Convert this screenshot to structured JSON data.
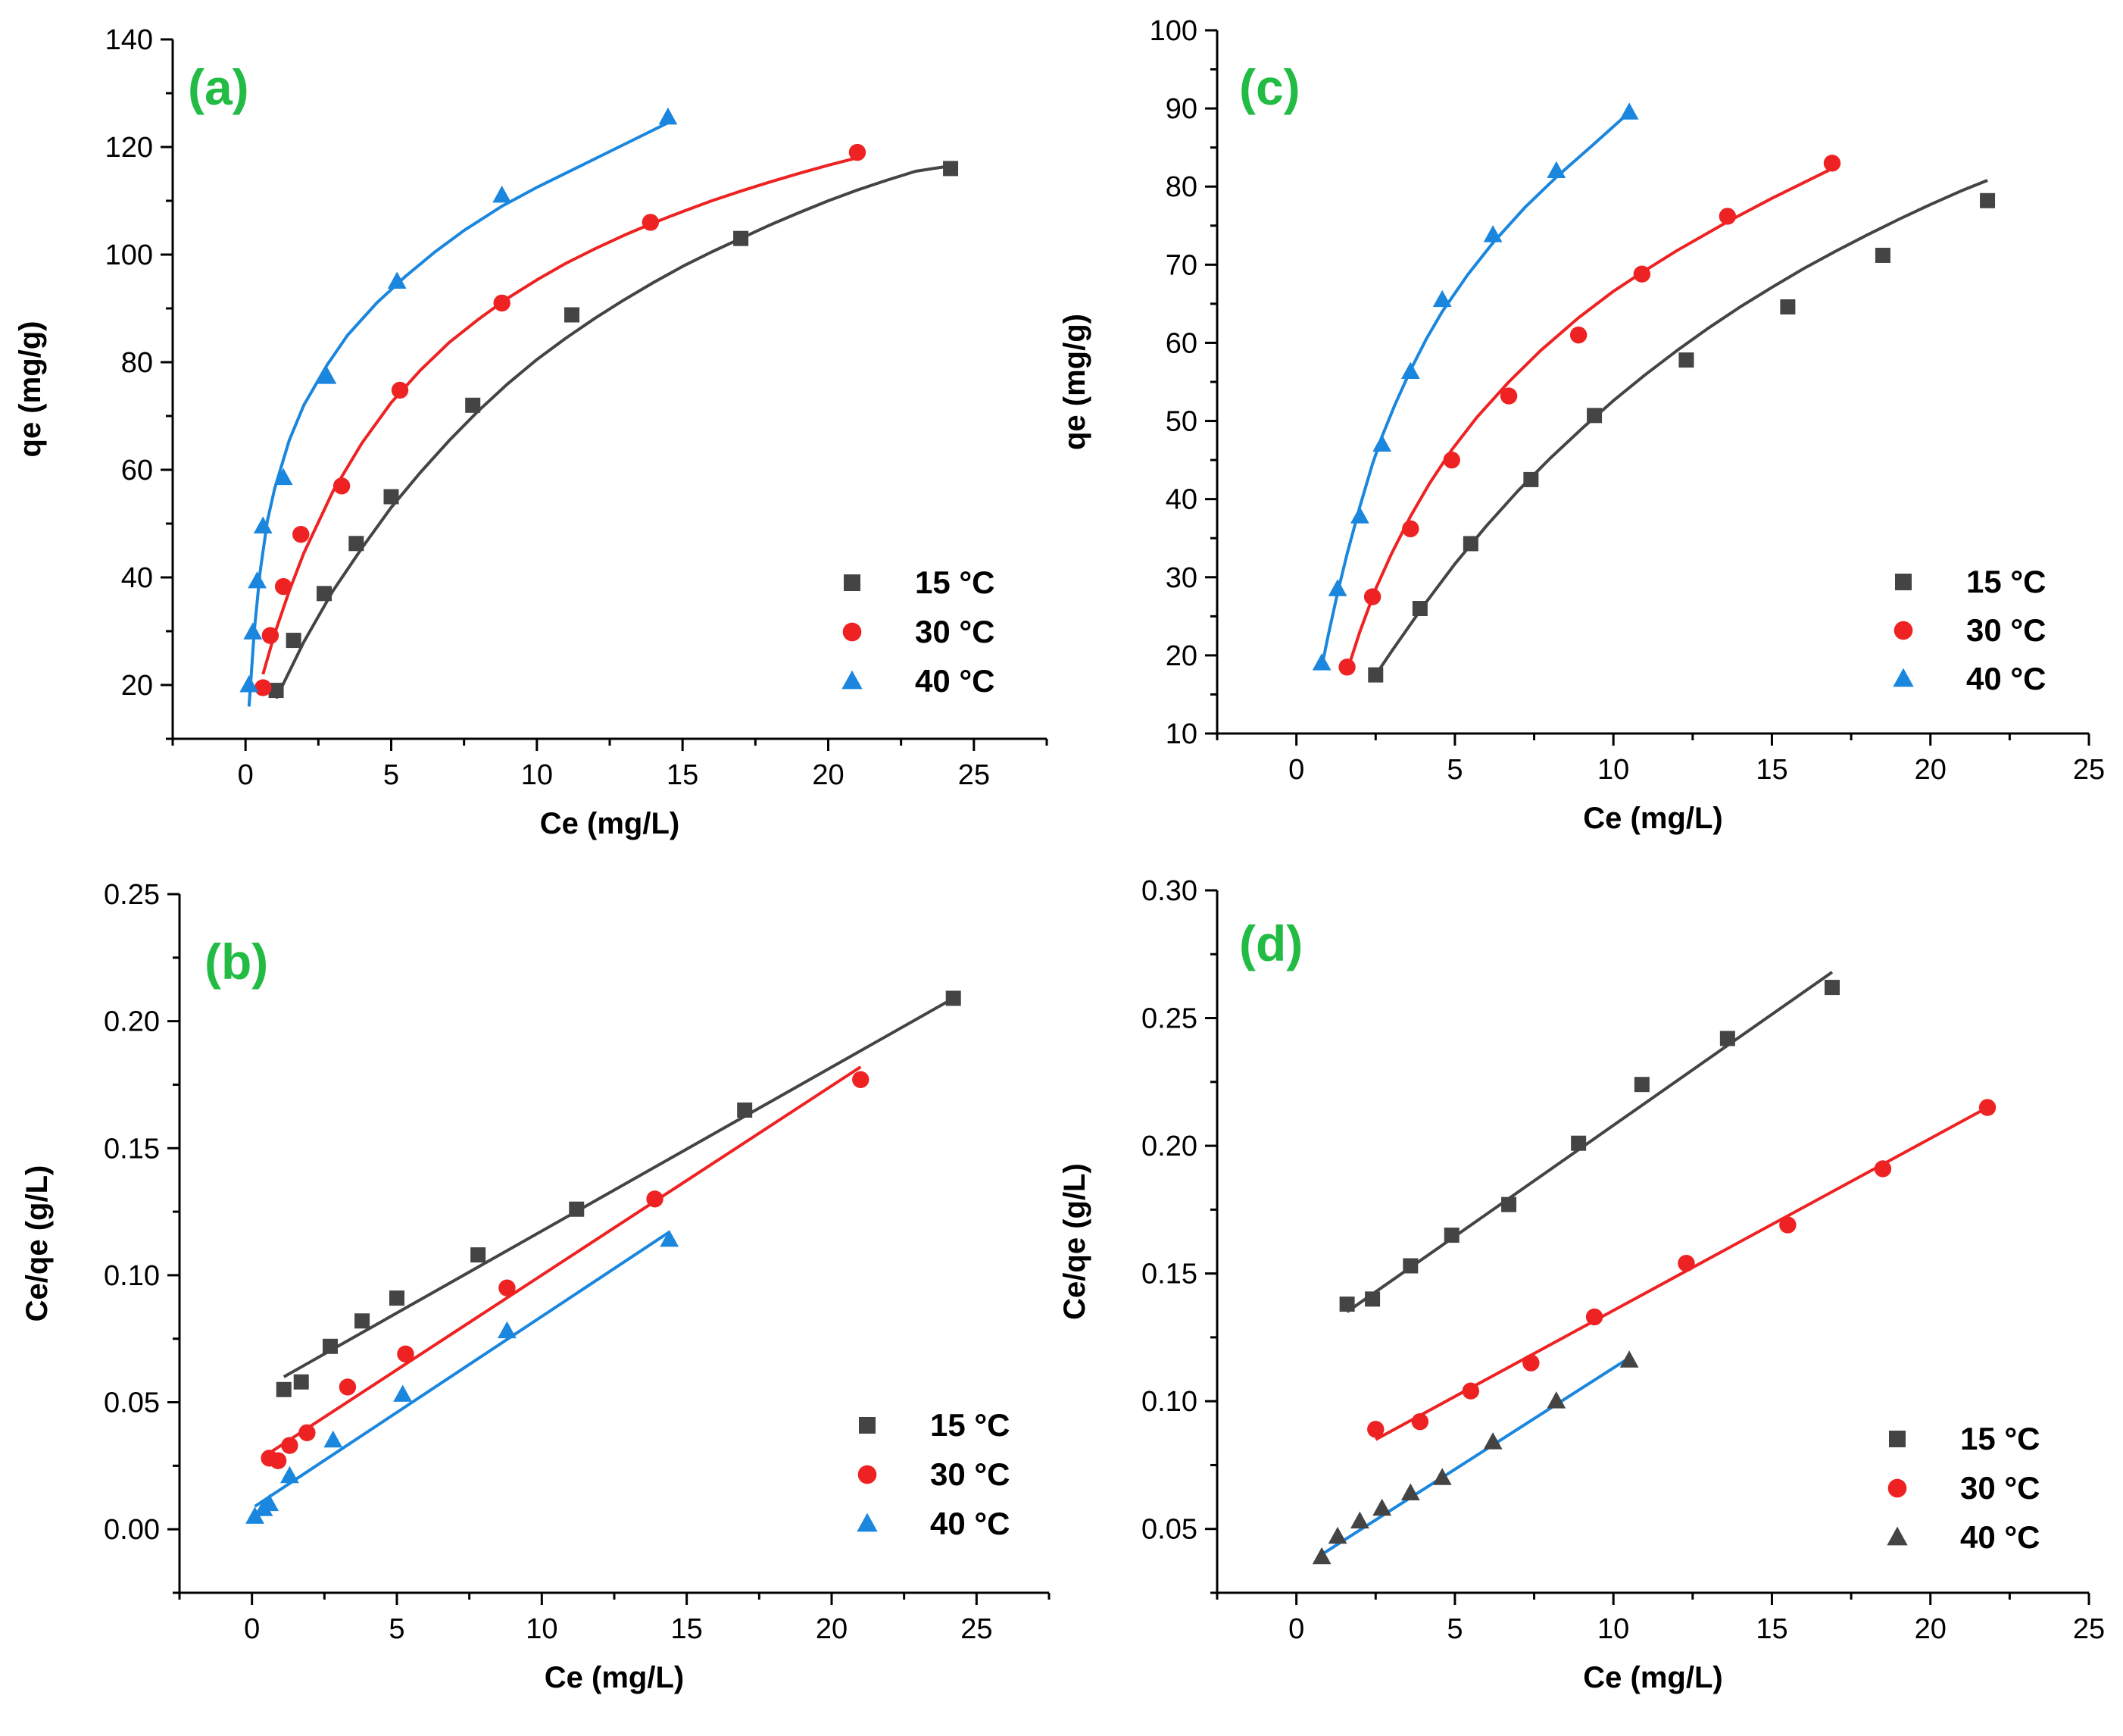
{
  "colors": {
    "15": "#444444",
    "30": "#ee2222",
    "40": "#1a86dd",
    "tag": "#22bb44"
  },
  "chart_data": [
    {
      "id": "a",
      "type": "scatter",
      "title": "(a)",
      "xlabel": "Ce (mg/L)",
      "ylabel": "qe (mg/g)",
      "xlim": [
        -2.5,
        27.5
      ],
      "ylim": [
        10,
        140
      ],
      "xticks": [
        0,
        5,
        10,
        15,
        20,
        25
      ],
      "yticks": [
        20,
        40,
        60,
        80,
        100,
        120,
        140
      ],
      "legend_position": "bottom-right",
      "fit": "curve",
      "series": [
        {
          "name": "15 °C",
          "marker": "square",
          "color": "#444444",
          "x": [
            1.05,
            1.65,
            2.7,
            3.8,
            5.0,
            7.8,
            11.2,
            17.0,
            24.2
          ],
          "y": [
            19.0,
            28.3,
            37.0,
            46.3,
            55.0,
            72.0,
            88.8,
            103.0,
            116.0
          ],
          "fit_x": [
            1.05,
            2,
            3,
            4,
            5,
            6,
            7,
            8,
            9,
            10,
            11,
            12,
            13,
            14,
            15,
            16,
            17,
            18,
            19,
            20,
            21,
            22,
            23,
            24.2
          ],
          "fit_y": [
            17.5,
            28.0,
            37.5,
            45.5,
            53.0,
            59.5,
            65.5,
            71.0,
            76.0,
            80.5,
            84.5,
            88.2,
            91.6,
            94.8,
            97.8,
            100.5,
            103.0,
            105.5,
            107.8,
            110.0,
            112.0,
            113.8,
            115.5,
            116.5
          ]
        },
        {
          "name": "30 °C",
          "marker": "circle",
          "color": "#ee2222",
          "x": [
            0.6,
            0.85,
            1.3,
            1.9,
            3.3,
            5.3,
            8.8,
            13.9,
            21.0
          ],
          "y": [
            19.5,
            29.2,
            38.3,
            48.0,
            57.0,
            74.8,
            91.0,
            106.0,
            119.0
          ],
          "fit_x": [
            0.6,
            1.0,
            1.5,
            2.0,
            3.0,
            4.0,
            5.0,
            6.0,
            7.0,
            8.0,
            9.0,
            10.0,
            11.0,
            12.0,
            13.0,
            14.0,
            15.0,
            16.0,
            17.0,
            18.0,
            19.0,
            20.0,
            21.0
          ],
          "fit_y": [
            22.0,
            29.5,
            37.5,
            44.5,
            56.0,
            65.0,
            72.5,
            78.5,
            83.7,
            88.0,
            91.9,
            95.3,
            98.4,
            101.1,
            103.6,
            105.9,
            108.0,
            110.0,
            111.8,
            113.5,
            115.1,
            116.6,
            118.0
          ]
        },
        {
          "name": "40 °C",
          "marker": "triangle",
          "color": "#1a86dd",
          "x": [
            0.12,
            0.25,
            0.4,
            0.6,
            1.3,
            2.8,
            5.2,
            8.8,
            14.5
          ],
          "y": [
            20.0,
            29.8,
            39.3,
            49.5,
            58.5,
            77.3,
            95.0,
            111.0,
            125.5
          ],
          "fit_x": [
            0.12,
            0.3,
            0.5,
            0.75,
            1.0,
            1.5,
            2.0,
            2.8,
            3.5,
            4.5,
            5.5,
            6.5,
            7.5,
            8.8,
            10.0,
            11.5,
            13.0,
            14.5
          ],
          "fit_y": [
            16.0,
            30.0,
            41.0,
            50.5,
            56.5,
            65.5,
            72.0,
            79.5,
            85.0,
            91.0,
            96.0,
            100.5,
            104.5,
            109.0,
            112.5,
            116.5,
            120.5,
            124.5
          ]
        }
      ]
    },
    {
      "id": "b",
      "type": "scatter",
      "title": "(b)",
      "xlabel": "Ce (mg/L)",
      "ylabel": "Ce/qe (g/L)",
      "xlim": [
        -2.5,
        27.5
      ],
      "ylim": [
        -0.025,
        0.25
      ],
      "xticks": [
        0,
        5,
        10,
        15,
        20,
        25
      ],
      "yticks": [
        0.0,
        0.05,
        0.1,
        0.15,
        0.2,
        0.25
      ],
      "ytick_labels": [
        "0.00",
        "0.05",
        "0.10",
        "0.15",
        "0.20",
        "0.25"
      ],
      "legend_position": "bottom-right",
      "fit": "linear",
      "series": [
        {
          "name": "15 °C",
          "marker": "square",
          "color": "#444444",
          "x": [
            1.1,
            1.7,
            2.7,
            3.8,
            5.0,
            7.8,
            11.2,
            17.0,
            24.2
          ],
          "y": [
            0.055,
            0.058,
            0.072,
            0.082,
            0.091,
            0.108,
            0.126,
            0.165,
            0.209
          ],
          "fit_x": [
            1.1,
            24.2
          ],
          "fit_y": [
            0.06,
            0.209
          ]
        },
        {
          "name": "30 °C",
          "marker": "circle",
          "color": "#ee2222",
          "x": [
            0.6,
            0.9,
            1.3,
            1.9,
            3.3,
            5.3,
            8.8,
            13.9,
            21.0
          ],
          "y": [
            0.028,
            0.027,
            0.033,
            0.038,
            0.056,
            0.069,
            0.095,
            0.13,
            0.177
          ],
          "fit_x": [
            0.6,
            21.0
          ],
          "fit_y": [
            0.03,
            0.182
          ]
        },
        {
          "name": "40 °C",
          "marker": "triangle",
          "color": "#1a86dd",
          "x": [
            0.1,
            0.4,
            0.6,
            1.3,
            2.8,
            5.2,
            8.8,
            14.4
          ],
          "y": [
            0.005,
            0.008,
            0.01,
            0.021,
            0.035,
            0.053,
            0.078,
            0.114
          ],
          "fit_x": [
            0.1,
            14.4
          ],
          "fit_y": [
            0.009,
            0.117
          ]
        }
      ]
    },
    {
      "id": "c",
      "type": "scatter",
      "title": "(c)",
      "xlabel": "Ce (mg/L)",
      "ylabel": "qe (mg/g)",
      "xlim": [
        -2.5,
        25
      ],
      "ylim": [
        10,
        100
      ],
      "xticks": [
        0,
        5,
        10,
        15,
        20,
        25
      ],
      "yticks": [
        10,
        20,
        30,
        40,
        50,
        60,
        70,
        80,
        90,
        100
      ],
      "legend_position": "bottom-right",
      "fit": "curve",
      "series": [
        {
          "name": "15 °C",
          "marker": "square",
          "color": "#444444",
          "x": [
            2.5,
            3.9,
            5.5,
            7.4,
            9.4,
            12.3,
            15.5,
            18.5,
            21.8
          ],
          "y": [
            17.5,
            26.0,
            34.3,
            42.5,
            50.7,
            57.8,
            64.6,
            71.2,
            78.2
          ],
          "fit_x": [
            2.5,
            3.0,
            4.0,
            5.0,
            6.0,
            7.0,
            8.0,
            9.0,
            10.0,
            11.0,
            12.0,
            13.0,
            14.0,
            15.0,
            16.0,
            17.0,
            18.0,
            19.0,
            20.0,
            21.0,
            21.8
          ],
          "fit_y": [
            17.5,
            20.5,
            26.3,
            31.7,
            36.6,
            41.1,
            45.2,
            49.0,
            52.6,
            55.9,
            59.0,
            61.9,
            64.6,
            67.1,
            69.5,
            71.7,
            73.8,
            75.8,
            77.7,
            79.5,
            80.8
          ]
        },
        {
          "name": "30 °C",
          "marker": "circle",
          "color": "#ee2222",
          "x": [
            1.6,
            2.4,
            3.6,
            4.9,
            6.7,
            8.9,
            10.9,
            13.6,
            16.9
          ],
          "y": [
            18.5,
            27.5,
            36.2,
            45.0,
            53.2,
            61.0,
            68.8,
            76.2,
            83.0
          ],
          "fit_x": [
            1.6,
            2.0,
            2.5,
            3.0,
            3.6,
            4.2,
            4.9,
            5.7,
            6.7,
            7.7,
            8.9,
            10.0,
            10.9,
            12.0,
            13.6,
            15.0,
            16.9
          ],
          "fit_y": [
            18.0,
            23.0,
            28.5,
            33.0,
            37.8,
            42.0,
            46.3,
            50.5,
            55.0,
            59.0,
            63.2,
            66.6,
            69.0,
            71.8,
            75.5,
            78.5,
            82.3
          ]
        },
        {
          "name": "40 °C",
          "marker": "triangle",
          "color": "#1a86dd",
          "x": [
            0.8,
            1.3,
            2.0,
            2.7,
            3.6,
            4.6,
            6.2,
            8.2,
            10.5
          ],
          "y": [
            19.0,
            28.5,
            37.8,
            47.0,
            56.3,
            65.5,
            73.8,
            82.0,
            89.5
          ],
          "fit_x": [
            0.8,
            1.0,
            1.3,
            1.6,
            2.0,
            2.4,
            2.7,
            3.1,
            3.6,
            4.1,
            4.6,
            5.4,
            6.2,
            7.2,
            8.2,
            9.4,
            10.5
          ],
          "fit_y": [
            18.5,
            22.5,
            28.0,
            33.0,
            39.0,
            44.5,
            48.0,
            52.0,
            56.5,
            60.5,
            64.0,
            68.7,
            72.8,
            77.3,
            81.2,
            85.5,
            89.5
          ]
        }
      ]
    },
    {
      "id": "d",
      "type": "scatter",
      "title": "(d)",
      "xlabel": "Ce (mg/L)",
      "ylabel": "Ce/qe (g/L)",
      "xlim": [
        -2.5,
        25
      ],
      "ylim": [
        0.025,
        0.3
      ],
      "xticks": [
        0,
        5,
        10,
        15,
        20,
        25
      ],
      "yticks": [
        0.05,
        0.1,
        0.15,
        0.2,
        0.25,
        0.3
      ],
      "ytick_labels": [
        "0.05",
        "0.10",
        "0.15",
        "0.20",
        "0.25",
        "0.30"
      ],
      "legend_position": "bottom-right",
      "fit": "linear",
      "series": [
        {
          "name": "15 °C",
          "marker": "square",
          "color": "#444444",
          "x": [
            1.6,
            2.4,
            3.6,
            4.9,
            6.7,
            8.9,
            10.9,
            13.6,
            16.9
          ],
          "y": [
            0.138,
            0.14,
            0.153,
            0.165,
            0.177,
            0.201,
            0.224,
            0.242,
            0.262
          ],
          "fit_x": [
            1.6,
            16.9
          ],
          "fit_y": [
            0.135,
            0.268
          ]
        },
        {
          "name": "30 °C",
          "marker": "circle",
          "color": "#ee2222",
          "x": [
            2.5,
            3.9,
            5.5,
            7.4,
            9.4,
            12.3,
            15.5,
            18.5,
            21.8
          ],
          "y": [
            0.089,
            0.092,
            0.104,
            0.115,
            0.133,
            0.154,
            0.169,
            0.191,
            0.215
          ],
          "fit_x": [
            2.5,
            21.8
          ],
          "fit_y": [
            0.085,
            0.215
          ]
        },
        {
          "name": "40 °C",
          "marker": "triangle",
          "color": "#444444",
          "x": [
            0.8,
            1.3,
            2.0,
            2.7,
            3.6,
            4.6,
            6.2,
            8.2,
            10.5
          ],
          "y": [
            0.039,
            0.047,
            0.053,
            0.058,
            0.064,
            0.07,
            0.084,
            0.1,
            0.116
          ],
          "fit_x": [
            0.8,
            10.5
          ],
          "fit_y": [
            0.04,
            0.117
          ],
          "fit_color": "#1a86dd"
        }
      ]
    }
  ]
}
